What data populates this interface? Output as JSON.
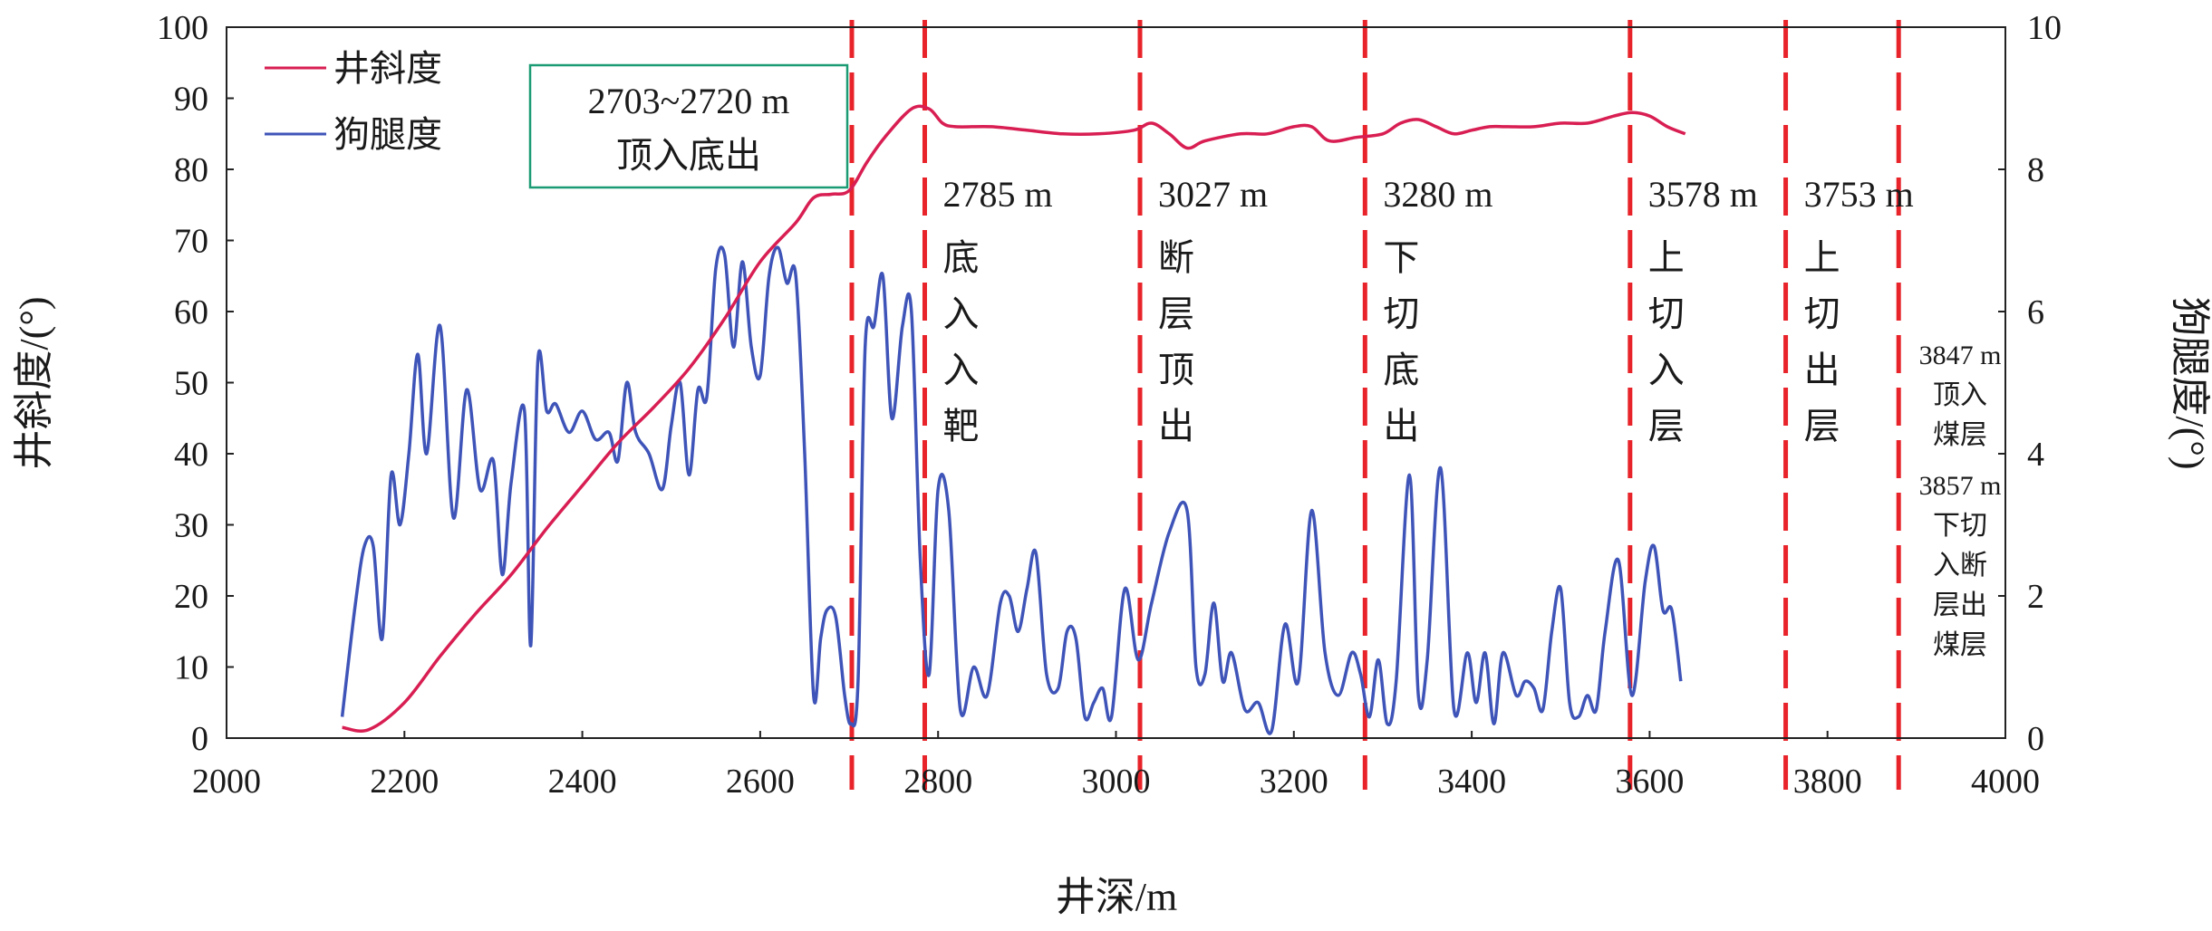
{
  "chart_data": {
    "type": "line",
    "xlabel": "井深/m",
    "ylabel_left": "井斜度/(°)",
    "ylabel_right": "狗腿度/(°)",
    "xlim": [
      2000,
      4000
    ],
    "ylim_left": [
      0,
      100
    ],
    "ylim_right": [
      0,
      10
    ],
    "x_ticks": [
      "2000",
      "2200",
      "2400",
      "2600",
      "2800",
      "3000",
      "3200",
      "3400",
      "3600",
      "3800",
      "4000"
    ],
    "y_ticks_left": [
      "0",
      "10",
      "20",
      "30",
      "40",
      "50",
      "60",
      "70",
      "80",
      "90",
      "100"
    ],
    "y_ticks_right": [
      "0",
      "2",
      "4",
      "6",
      "8",
      "10"
    ],
    "legend": {
      "placement": "top-left",
      "entries": [
        "井斜度",
        "狗腿度"
      ]
    },
    "colors": {
      "inclination": "#d81e52",
      "dogleg": "#3f54b8",
      "marker": "#e8232a"
    },
    "series": [
      {
        "name": "井斜度",
        "axis": "left",
        "x": [
          2130,
          2160,
          2200,
          2240,
          2280,
          2320,
          2360,
          2400,
          2440,
          2480,
          2520,
          2560,
          2600,
          2640,
          2660,
          2680,
          2700,
          2720,
          2740,
          2770,
          2790,
          2805,
          2820,
          2860,
          2900,
          2940,
          2980,
          3020,
          3040,
          3060,
          3080,
          3100,
          3140,
          3170,
          3200,
          3220,
          3240,
          3270,
          3300,
          3320,
          3340,
          3360,
          3380,
          3400,
          3420,
          3440,
          3470,
          3500,
          3530,
          3560,
          3580,
          3600,
          3620,
          3640
        ],
        "values": [
          1.5,
          1.2,
          5.0,
          11.5,
          17.5,
          23.0,
          29.5,
          35.5,
          41.5,
          46.5,
          52.0,
          59.0,
          67.0,
          72.5,
          76.0,
          76.5,
          77.0,
          81.0,
          84.5,
          88.5,
          88.5,
          86.5,
          86.0,
          86.0,
          85.5,
          85.0,
          85.0,
          85.5,
          86.5,
          85.0,
          83.0,
          84.0,
          85.0,
          85.0,
          86.0,
          86.0,
          84.0,
          84.5,
          85.0,
          86.5,
          87.0,
          86.0,
          85.0,
          85.5,
          86.0,
          86.0,
          86.0,
          86.5,
          86.5,
          87.5,
          88.0,
          87.5,
          86.0,
          85.0
        ]
      },
      {
        "name": "狗腿度",
        "axis": "right",
        "x": [
          2130,
          2145,
          2155,
          2165,
          2175,
          2185,
          2195,
          2205,
          2215,
          2225,
          2240,
          2255,
          2270,
          2285,
          2300,
          2310,
          2320,
          2335,
          2342,
          2350,
          2360,
          2370,
          2385,
          2400,
          2415,
          2430,
          2440,
          2450,
          2460,
          2475,
          2490,
          2500,
          2510,
          2520,
          2530,
          2540,
          2550,
          2560,
          2570,
          2580,
          2590,
          2600,
          2610,
          2620,
          2630,
          2640,
          2650,
          2660,
          2668,
          2675,
          2685,
          2695,
          2702,
          2710,
          2718,
          2728,
          2738,
          2748,
          2760,
          2770,
          2780,
          2790,
          2800,
          2812,
          2825,
          2840,
          2855,
          2870,
          2880,
          2890,
          2900,
          2910,
          2922,
          2935,
          2945,
          2955,
          2965,
          2975,
          2985,
          2995,
          3010,
          3025,
          3040,
          3060,
          3080,
          3090,
          3100,
          3110,
          3120,
          3130,
          3145,
          3160,
          3175,
          3190,
          3205,
          3220,
          3235,
          3250,
          3265,
          3275,
          3285,
          3295,
          3305,
          3315,
          3330,
          3340,
          3350,
          3365,
          3380,
          3395,
          3405,
          3415,
          3425,
          3435,
          3450,
          3460,
          3470,
          3480,
          3490,
          3500,
          3510,
          3520,
          3530,
          3540,
          3550,
          3565,
          3580,
          3595,
          3605,
          3615,
          3625,
          3635
        ],
        "values": [
          0.3,
          1.9,
          2.7,
          2.7,
          1.4,
          3.7,
          3.0,
          4.0,
          5.4,
          4.0,
          5.8,
          3.1,
          4.9,
          3.5,
          3.9,
          2.3,
          3.6,
          4.6,
          1.3,
          5.3,
          4.6,
          4.7,
          4.3,
          4.6,
          4.2,
          4.3,
          3.9,
          5.0,
          4.3,
          4.0,
          3.5,
          4.4,
          5.0,
          3.7,
          4.9,
          4.8,
          6.6,
          6.8,
          5.5,
          6.7,
          5.5,
          5.1,
          6.5,
          6.9,
          6.4,
          6.5,
          4.0,
          0.6,
          1.4,
          1.8,
          1.7,
          0.6,
          0.2,
          0.8,
          5.5,
          5.8,
          6.5,
          4.5,
          5.8,
          6.0,
          2.5,
          0.9,
          3.5,
          3.2,
          0.4,
          1.0,
          0.6,
          1.9,
          2.0,
          1.5,
          2.1,
          2.6,
          0.9,
          0.7,
          1.5,
          1.4,
          0.3,
          0.5,
          0.7,
          0.3,
          2.1,
          1.1,
          1.9,
          2.9,
          3.2,
          1.0,
          0.9,
          1.9,
          0.8,
          1.2,
          0.4,
          0.5,
          0.1,
          1.6,
          0.8,
          3.2,
          1.2,
          0.6,
          1.2,
          0.9,
          0.3,
          1.1,
          0.2,
          0.8,
          3.7,
          0.6,
          1.1,
          3.8,
          0.4,
          1.2,
          0.5,
          1.2,
          0.2,
          1.2,
          0.6,
          0.8,
          0.7,
          0.4,
          1.5,
          2.1,
          0.5,
          0.3,
          0.6,
          0.4,
          1.5,
          2.5,
          0.6,
          2.2,
          2.7,
          1.8,
          1.8,
          0.8
        ]
      }
    ],
    "markers": [
      {
        "x": 2703,
        "labels": []
      },
      {
        "x": 2785,
        "labels": [
          "2785 m",
          "底",
          "入",
          "入",
          "靶"
        ]
      },
      {
        "x": 3027,
        "labels": [
          "3027 m",
          "断",
          "层",
          "顶",
          "出"
        ]
      },
      {
        "x": 3280,
        "labels": [
          "3280 m",
          "下",
          "切",
          "底",
          "出"
        ]
      },
      {
        "x": 3578,
        "labels": [
          "3578 m",
          "上",
          "切",
          "入",
          "层"
        ]
      },
      {
        "x": 3753,
        "labels": [
          "3753 m",
          "上",
          "切",
          "出",
          "层"
        ]
      },
      {
        "x": 3880,
        "labels": []
      }
    ],
    "side_notes": [
      [
        "3847 m",
        "顶入",
        "煤层"
      ],
      [
        "3857 m",
        "下切",
        "入断",
        "层出",
        "煤层"
      ]
    ],
    "box_annotation": [
      "2703~2720 m",
      "顶入底出"
    ]
  }
}
